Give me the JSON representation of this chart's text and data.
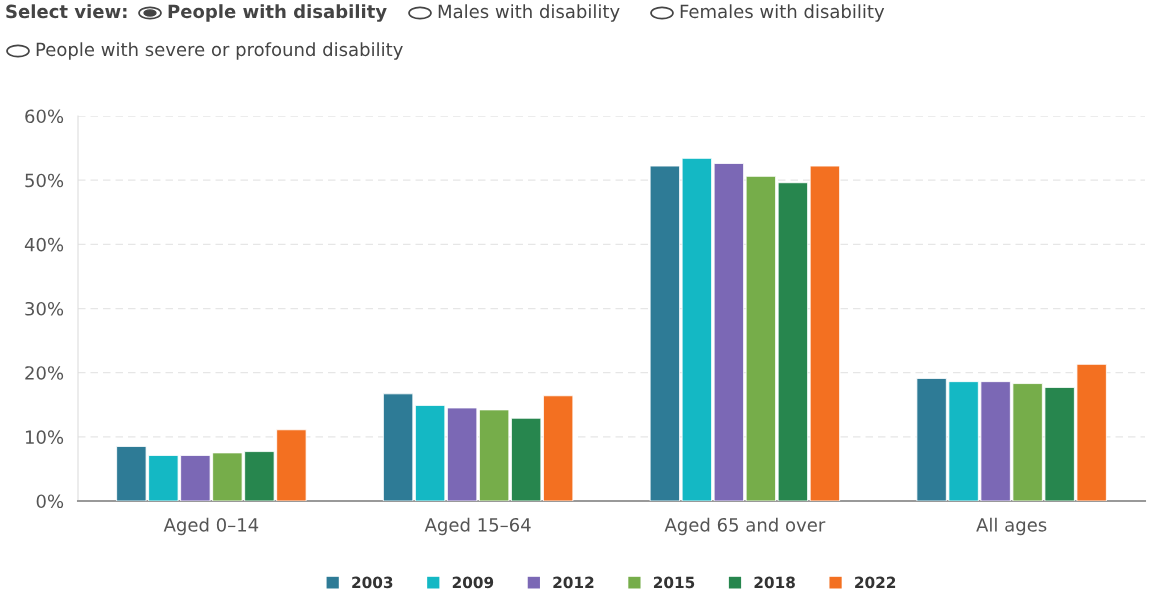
{
  "chart_data": {
    "type": "bar",
    "annotations": [
      "Select view:",
      "People with disability",
      "Males with disability",
      "Females with disability",
      "People with severe or profound disability"
    ],
    "categories": [
      "Aged 0–14",
      "Aged 15–64",
      "Aged 65 and over",
      "All ages"
    ],
    "series": [
      {
        "name": "2003",
        "color": "#2e7b96",
        "values": [
          8.5,
          16.7,
          52.2,
          19.1
        ]
      },
      {
        "name": "2009",
        "color": "#14b8c4",
        "values": [
          7.1,
          14.9,
          53.4,
          18.6
        ]
      },
      {
        "name": "2012",
        "color": "#7b68b5",
        "values": [
          7.1,
          14.5,
          52.6,
          18.6
        ]
      },
      {
        "name": "2015",
        "color": "#76ad4a",
        "values": [
          7.5,
          14.2,
          50.6,
          18.3
        ]
      },
      {
        "name": "2018",
        "color": "#27864e",
        "values": [
          7.7,
          12.9,
          49.6,
          17.7
        ]
      },
      {
        "name": "2022",
        "color": "#f37021",
        "values": [
          11.1,
          16.4,
          52.2,
          21.3
        ]
      }
    ],
    "ylim": [
      0,
      60
    ],
    "yticks": [
      {
        "value": 0,
        "label": "0%"
      },
      {
        "value": 10,
        "label": "10%"
      },
      {
        "value": 20,
        "label": "20%"
      },
      {
        "value": 30,
        "label": "30%"
      },
      {
        "value": 40,
        "label": "40%"
      },
      {
        "value": 50,
        "label": "50%"
      },
      {
        "value": 60,
        "label": "60%"
      }
    ],
    "grid": "y",
    "legend": "bottom"
  }
}
